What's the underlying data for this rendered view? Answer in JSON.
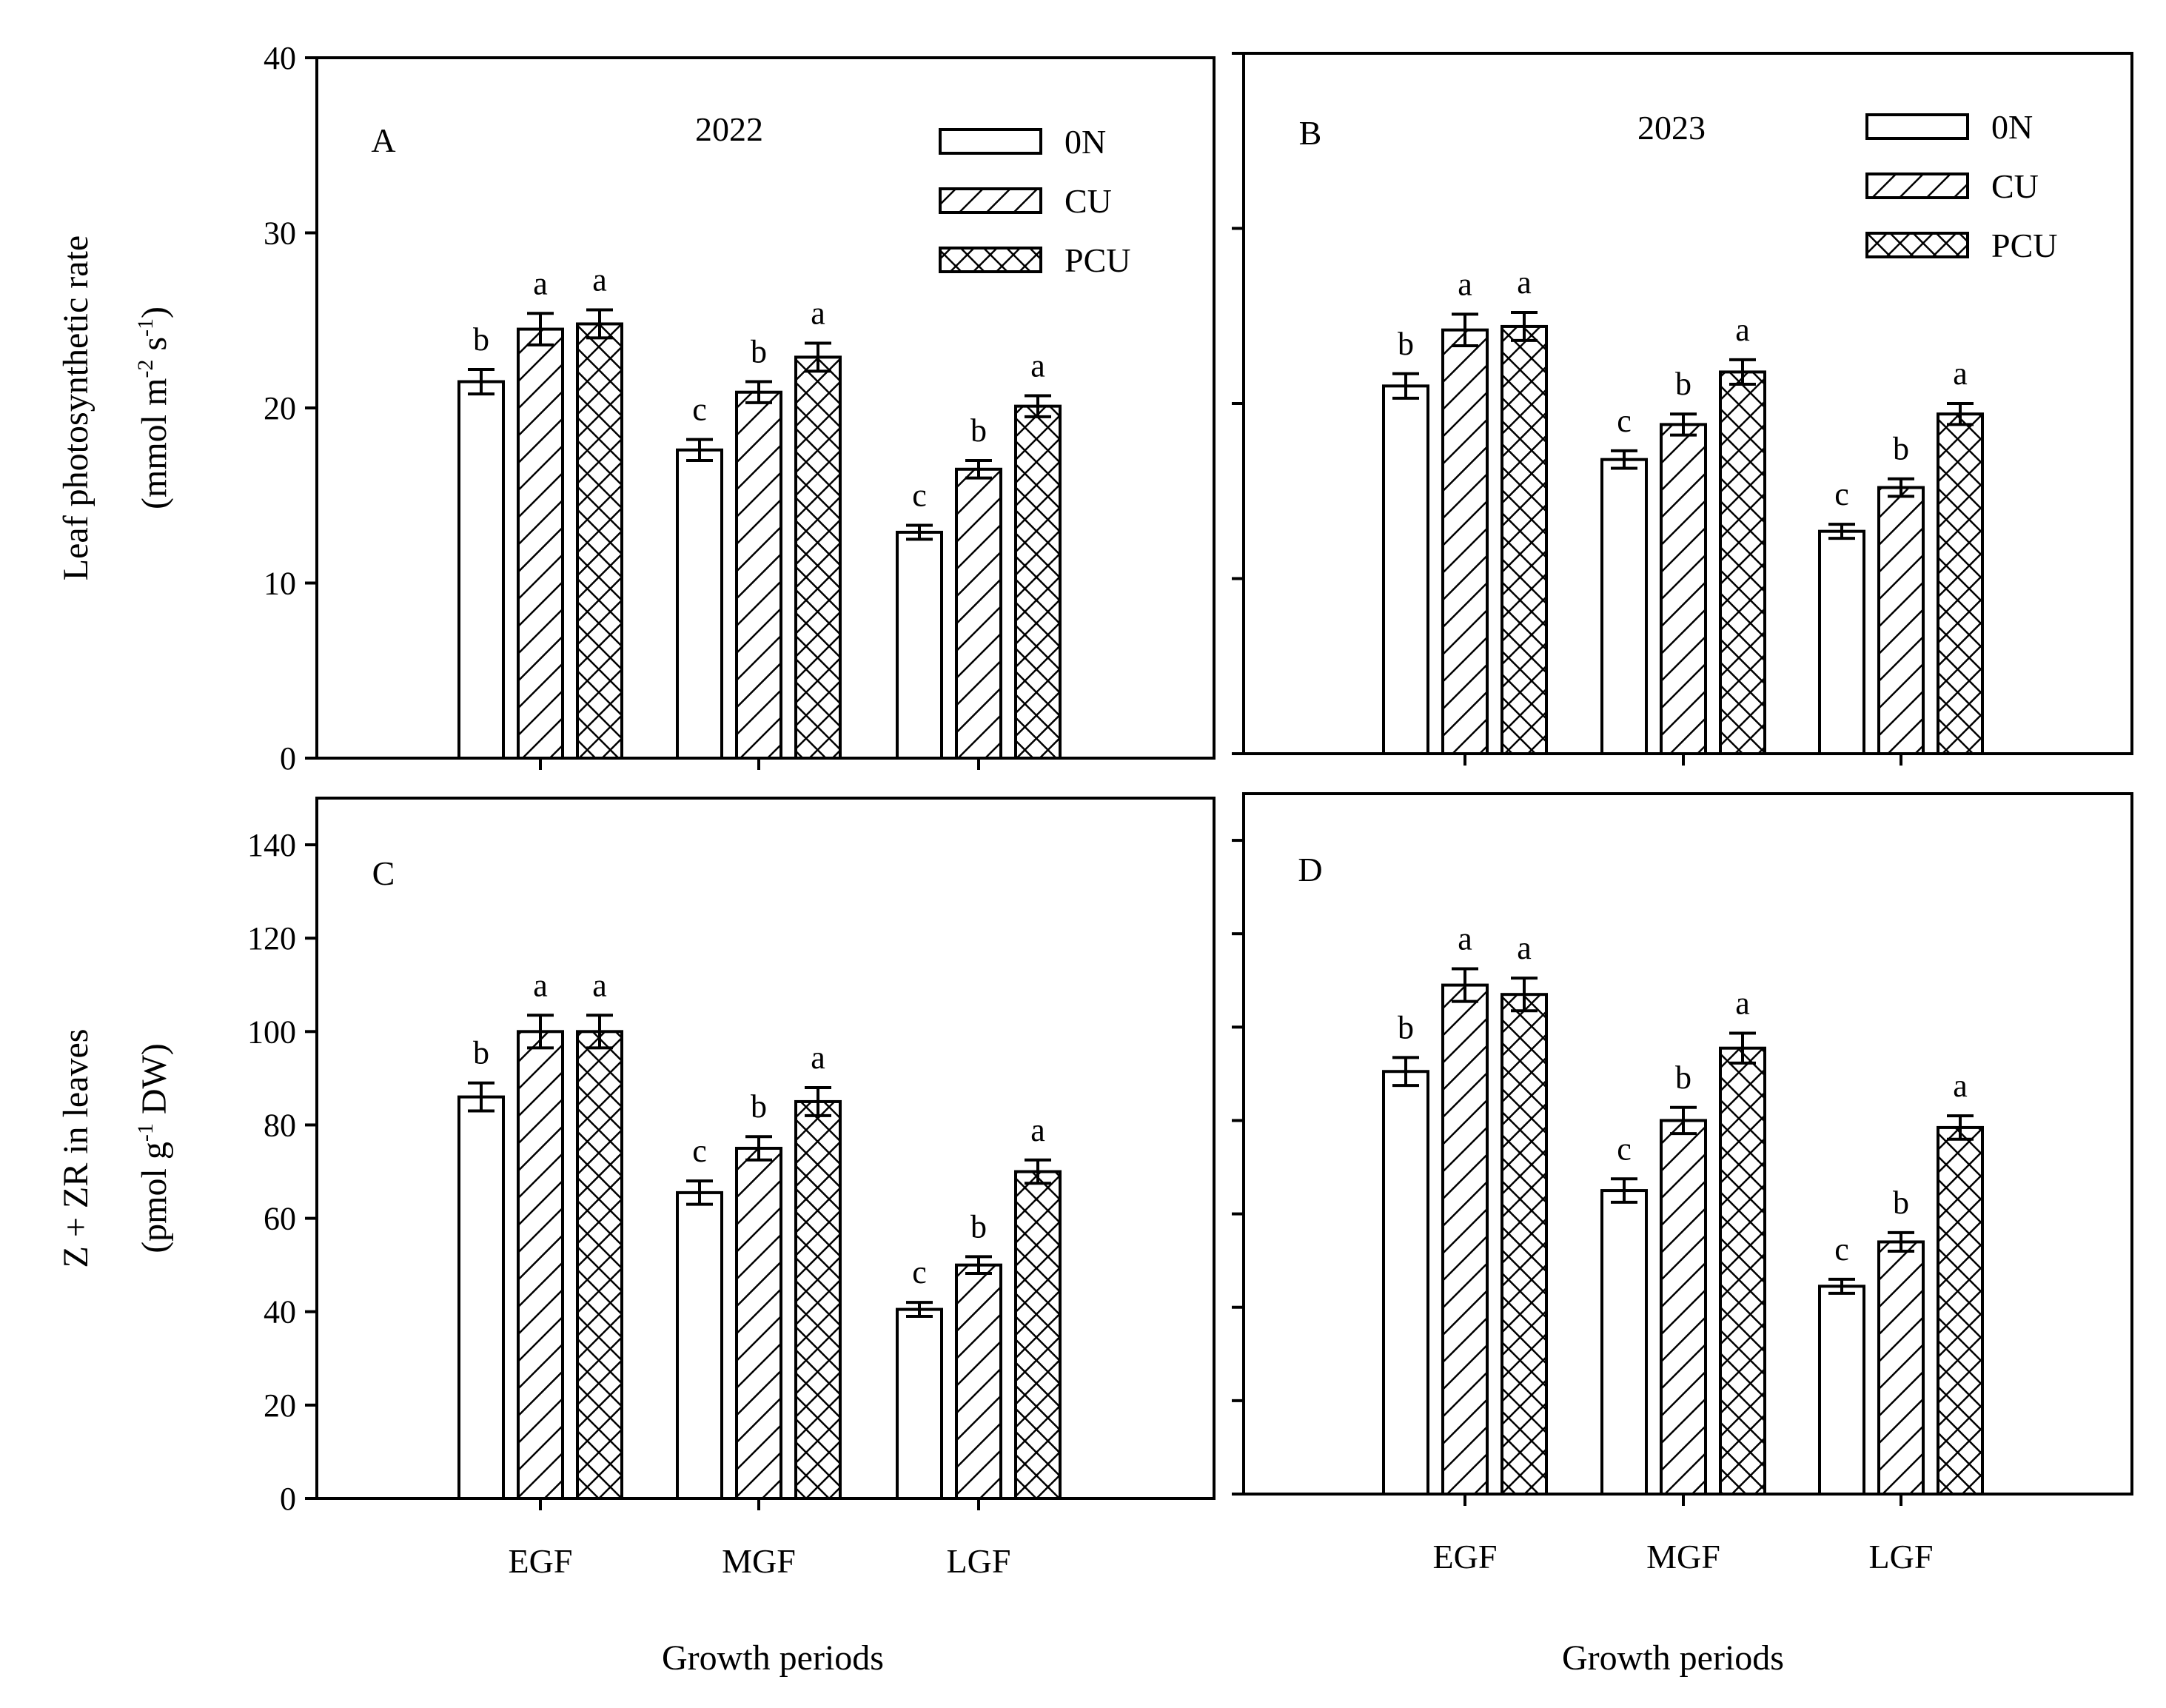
{
  "chart_data": [
    {
      "panel": "A",
      "type": "bar",
      "year_label": "2022",
      "categories": [
        "EGF",
        "MGF",
        "LGF"
      ],
      "series": [
        {
          "name": "0N",
          "pattern": "empty",
          "values": [
            21.5,
            17.6,
            12.9
          ],
          "errors": [
            0.7,
            0.6,
            0.4
          ],
          "letters": [
            "b",
            "c",
            "c"
          ]
        },
        {
          "name": "CU",
          "pattern": "hatch",
          "values": [
            24.5,
            20.9,
            16.5
          ],
          "errors": [
            0.9,
            0.6,
            0.5
          ],
          "letters": [
            "a",
            "b",
            "b"
          ]
        },
        {
          "name": "PCU",
          "pattern": "cross",
          "values": [
            24.8,
            22.9,
            20.1
          ],
          "errors": [
            0.8,
            0.8,
            0.6
          ],
          "letters": [
            "a",
            "a",
            "a"
          ]
        }
      ],
      "ylim": [
        0,
        40
      ],
      "yticks": [
        0,
        10,
        20,
        30,
        40
      ],
      "ylabel_line1": "Leaf photosynthetic rate",
      "ylabel_line2_pre": "(mmol m",
      "ylabel_sup1": "-2",
      "ylabel_mid": " s",
      "ylabel_sup2": "-1",
      "ylabel_post": ")",
      "xlabel": "",
      "show_tick_labels": true,
      "show_cat_labels": false,
      "legend": true
    },
    {
      "panel": "B",
      "type": "bar",
      "year_label": "2023",
      "categories": [
        "EGF",
        "MGF",
        "LGF"
      ],
      "series": [
        {
          "name": "0N",
          "pattern": "empty",
          "values": [
            21.0,
            16.8,
            12.7
          ],
          "errors": [
            0.7,
            0.5,
            0.4
          ],
          "letters": [
            "b",
            "c",
            "c"
          ]
        },
        {
          "name": "CU",
          "pattern": "hatch",
          "values": [
            24.2,
            18.8,
            15.2
          ],
          "errors": [
            0.9,
            0.6,
            0.5
          ],
          "letters": [
            "a",
            "b",
            "b"
          ]
        },
        {
          "name": "PCU",
          "pattern": "cross",
          "values": [
            24.4,
            21.8,
            19.4
          ],
          "errors": [
            0.8,
            0.7,
            0.6
          ],
          "letters": [
            "a",
            "a",
            "a"
          ]
        }
      ],
      "ylim": [
        0,
        40
      ],
      "yticks": [
        0,
        10,
        20,
        30,
        40
      ],
      "xlabel": "",
      "show_tick_labels": false,
      "show_cat_labels": false,
      "legend": true
    },
    {
      "panel": "C",
      "type": "bar",
      "categories": [
        "EGF",
        "MGF",
        "LGF"
      ],
      "series": [
        {
          "name": "0N",
          "pattern": "empty",
          "values": [
            86,
            65.5,
            40.5
          ],
          "errors": [
            3,
            2.5,
            1.5
          ],
          "letters": [
            "b",
            "c",
            "c"
          ]
        },
        {
          "name": "CU",
          "pattern": "hatch",
          "values": [
            100,
            75,
            50
          ],
          "errors": [
            3.5,
            2.5,
            1.8
          ],
          "letters": [
            "a",
            "b",
            "b"
          ]
        },
        {
          "name": "PCU",
          "pattern": "cross",
          "values": [
            100,
            85,
            70
          ],
          "errors": [
            3.5,
            3,
            2.5
          ],
          "letters": [
            "a",
            "a",
            "a"
          ]
        }
      ],
      "ylim": [
        0,
        150
      ],
      "yticks": [
        0,
        20,
        40,
        60,
        80,
        100,
        120,
        140
      ],
      "ylabel_line1": "Z + ZR in leaves",
      "ylabel_line2_pre": "(pmol g",
      "ylabel_sup1": "-1",
      "ylabel_post": " DW)",
      "xlabel": "Growth periods",
      "show_tick_labels": true,
      "show_cat_labels": true,
      "legend": false
    },
    {
      "panel": "D",
      "type": "bar",
      "categories": [
        "EGF",
        "MGF",
        "LGF"
      ],
      "series": [
        {
          "name": "0N",
          "pattern": "empty",
          "values": [
            90.5,
            65,
            44.5
          ],
          "errors": [
            3,
            2.5,
            1.5
          ],
          "letters": [
            "b",
            "c",
            "c"
          ]
        },
        {
          "name": "CU",
          "pattern": "hatch",
          "values": [
            109,
            80,
            54
          ],
          "errors": [
            3.5,
            2.8,
            2
          ],
          "letters": [
            "a",
            "b",
            "b"
          ]
        },
        {
          "name": "PCU",
          "pattern": "cross",
          "values": [
            107,
            95.5,
            78.5
          ],
          "errors": [
            3.5,
            3.2,
            2.5
          ],
          "letters": [
            "a",
            "a",
            "a"
          ]
        }
      ],
      "ylim": [
        0,
        150
      ],
      "yticks": [
        0,
        20,
        40,
        60,
        80,
        100,
        120,
        140
      ],
      "xlabel": "Growth periods",
      "show_tick_labels": false,
      "show_cat_labels": true,
      "legend": false
    }
  ]
}
